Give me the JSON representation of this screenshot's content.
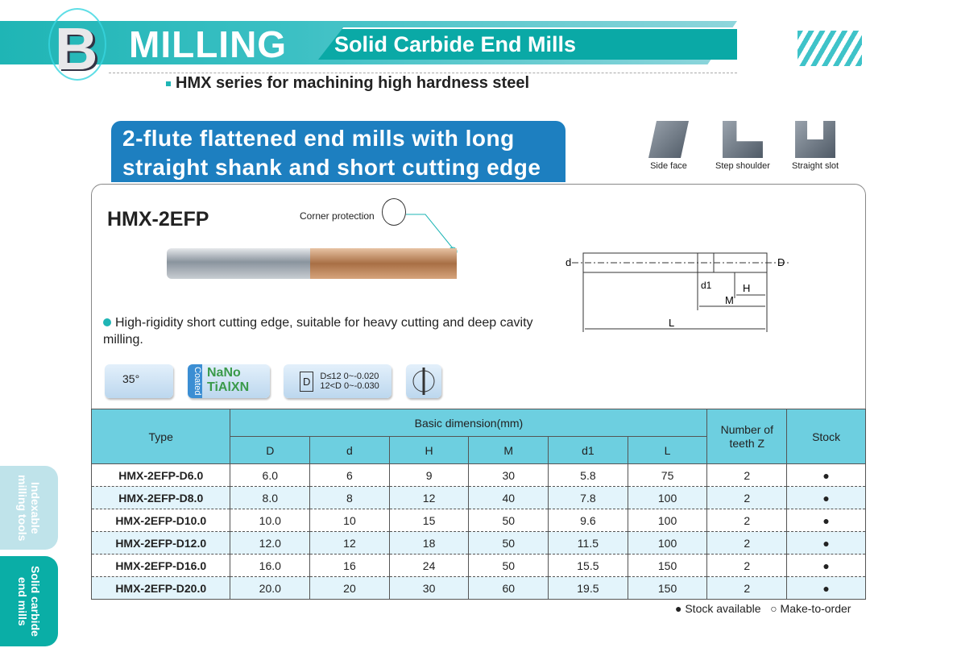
{
  "header": {
    "section_letter": "B",
    "section": "MILLING",
    "subtitle": "Solid Carbide End Mills",
    "series": "HMX series for machining high hardness steel"
  },
  "product": {
    "heading_line1": "2-flute flattened end mills with long",
    "heading_line2": "straight shank and short cutting edge",
    "model": "HMX-2EFP",
    "corner_label": "Corner protection",
    "feature": "High-rigidity short cutting edge, suitable for heavy cutting and deep cavity milling."
  },
  "applications": [
    {
      "label": "Side face"
    },
    {
      "label": "Step shoulder"
    },
    {
      "label": "Straight slot"
    }
  ],
  "icons": {
    "helix": "35°",
    "coated": "Coated",
    "nano": "NaNo",
    "coating": "TiAlXN",
    "tol_symbol": "D",
    "tol_line1": "D≤12  0~-0.020",
    "tol_line2": "12<D  0~-0.030"
  },
  "diagram": {
    "labels": [
      "d",
      "D",
      "d1",
      "H",
      "M",
      "L"
    ]
  },
  "table": {
    "type_header": "Type",
    "basic_header": "Basic dimension(mm)",
    "teeth_header": "Number of teeth Z",
    "stock_header": "Stock",
    "columns": [
      "D",
      "d",
      "H",
      "M",
      "d1",
      "L"
    ],
    "rows": [
      [
        "HMX-2EFP-D6.0",
        "6.0",
        "6",
        "9",
        "30",
        "5.8",
        "75",
        "2",
        "●"
      ],
      [
        "HMX-2EFP-D8.0",
        "8.0",
        "8",
        "12",
        "40",
        "7.8",
        "100",
        "2",
        "●"
      ],
      [
        "HMX-2EFP-D10.0",
        "10.0",
        "10",
        "15",
        "50",
        "9.6",
        "100",
        "2",
        "●"
      ],
      [
        "HMX-2EFP-D12.0",
        "12.0",
        "12",
        "18",
        "50",
        "11.5",
        "100",
        "2",
        "●"
      ],
      [
        "HMX-2EFP-D16.0",
        "16.0",
        "16",
        "24",
        "50",
        "15.5",
        "150",
        "2",
        "●"
      ],
      [
        "HMX-2EFP-D20.0",
        "20.0",
        "20",
        "30",
        "60",
        "19.5",
        "150",
        "2",
        "●"
      ]
    ]
  },
  "legend": {
    "available": "● Stock available",
    "order": "○ Make-to-order"
  },
  "side_tabs": [
    {
      "label": "Indexable milling tools",
      "active": false
    },
    {
      "label": "Solid carbide end mills",
      "active": true
    }
  ],
  "colors": {
    "teal": "#1fb5b5",
    "blue": "#1d7fc0",
    "table_header": "#6dcfe0"
  }
}
